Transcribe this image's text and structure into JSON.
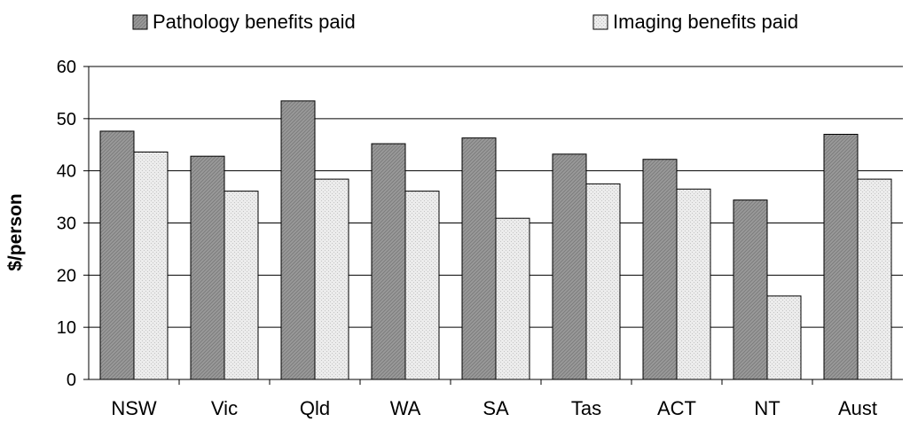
{
  "chart_data": {
    "type": "bar",
    "title": "",
    "xlabel": "",
    "ylabel": "$/person",
    "ylim": [
      0,
      60
    ],
    "yticks": [
      0,
      10,
      20,
      30,
      40,
      50,
      60
    ],
    "grid": true,
    "legend_position": "top",
    "categories": [
      "NSW",
      "Vic",
      "Qld",
      "WA",
      "SA",
      "Tas",
      "ACT",
      "NT",
      "Aust"
    ],
    "series": [
      {
        "name": "Pathology benefits paid",
        "color": "#9a9a9a",
        "pattern": "dense-diagonal-hatch",
        "values": [
          47.6,
          42.8,
          53.4,
          45.2,
          46.3,
          43.2,
          42.2,
          34.4,
          47.0
        ]
      },
      {
        "name": "Imaging benefits paid",
        "color": "#e6e6e6",
        "pattern": "light-dots",
        "values": [
          43.6,
          36.1,
          38.4,
          36.1,
          30.9,
          37.5,
          36.5,
          16.0,
          38.4
        ]
      }
    ]
  }
}
